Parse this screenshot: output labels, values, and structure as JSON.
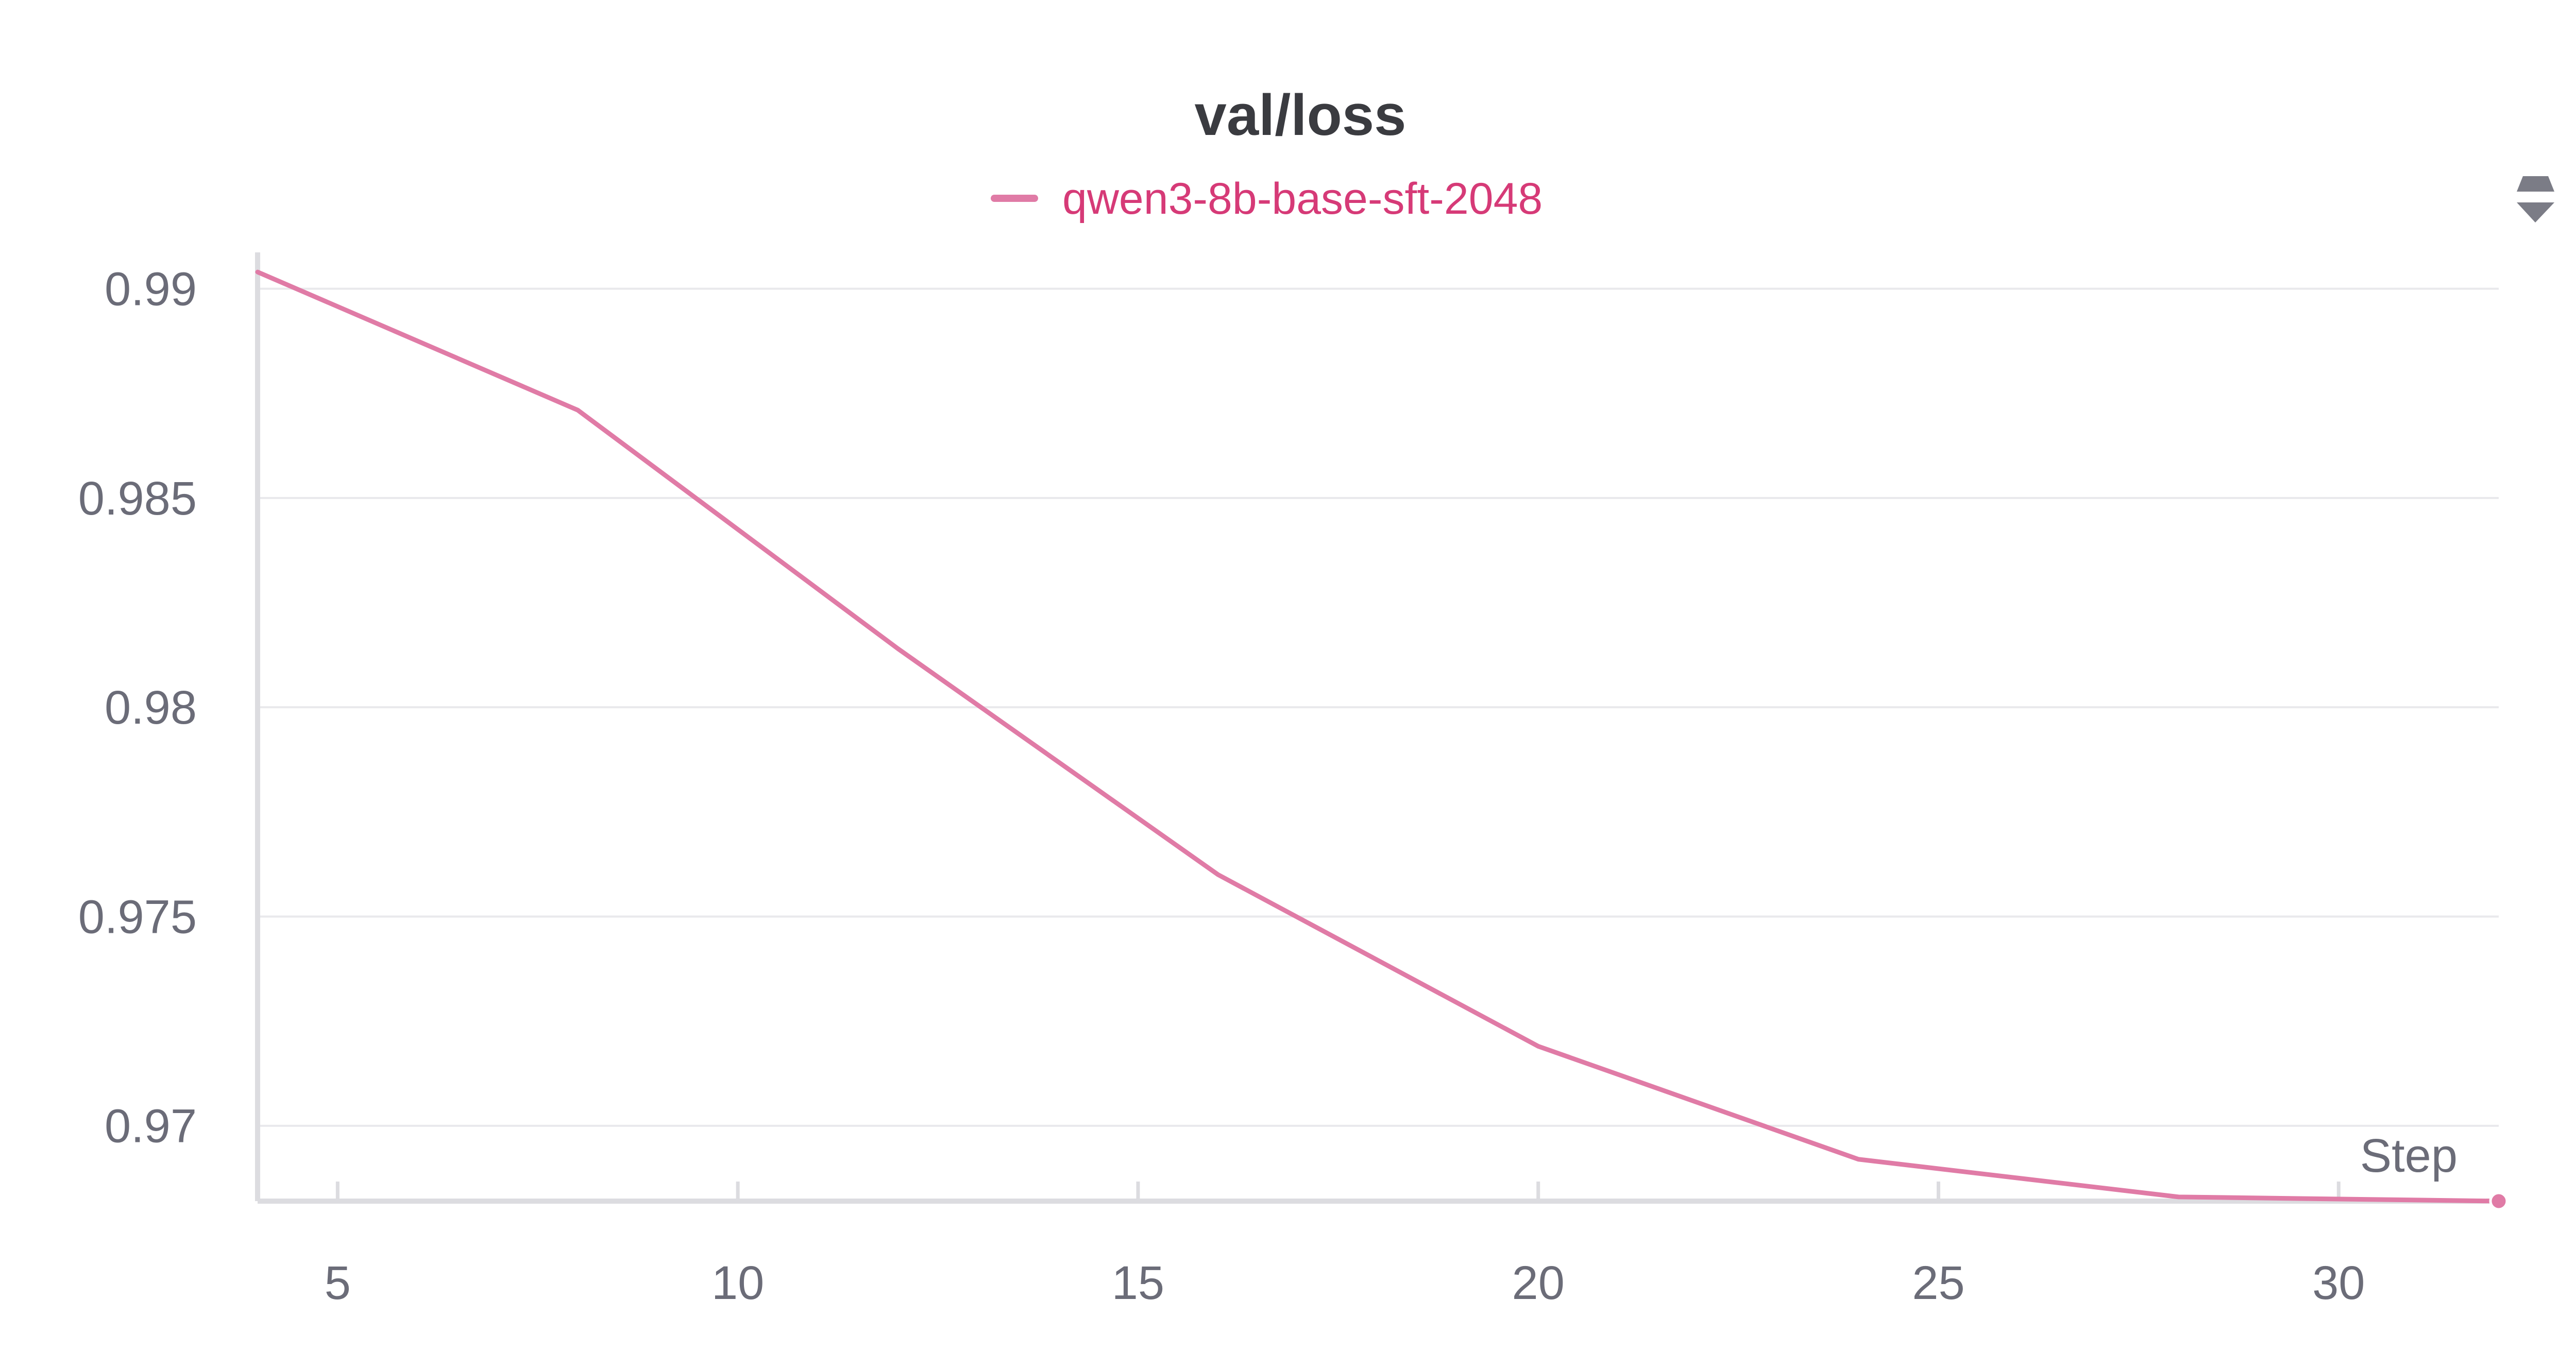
{
  "chart_data": {
    "type": "line",
    "title": "val/loss",
    "xlabel": "Step",
    "ylabel": "",
    "xlim": [
      4,
      32
    ],
    "ylim": [
      0.9682,
      0.9905
    ],
    "x_ticks": [
      5,
      10,
      15,
      20,
      25,
      30
    ],
    "y_ticks": [
      0.97,
      0.975,
      0.98,
      0.985,
      0.99
    ],
    "y_tick_labels": [
      "0.97",
      "0.975",
      "0.98",
      "0.985",
      "0.99"
    ],
    "grid": true,
    "legend_position": "top-center",
    "series": [
      {
        "name": "qwen3-8b-base-sft-2048",
        "color": "#e07ba6",
        "x": [
          4,
          8,
          12,
          16,
          20,
          24,
          28,
          32
        ],
        "y": [
          0.9904,
          0.9871,
          0.9814,
          0.976,
          0.9719,
          0.9692,
          0.9683,
          0.9682
        ]
      }
    ]
  },
  "legend_text_color": "#d63a77",
  "grid_color": "#e9e9ec",
  "axis_color": "#dcdce0",
  "control_icon": "sort-arrows-icon"
}
